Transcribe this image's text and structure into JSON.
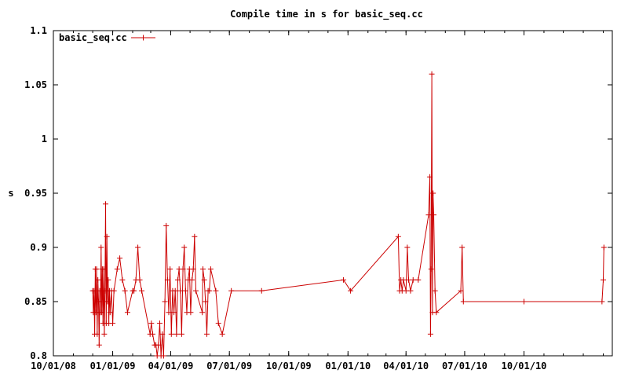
{
  "chart_data": {
    "type": "line",
    "title": "Compile time in s for basic_seq.cc",
    "xlabel": "",
    "ylabel": "s",
    "x_type": "date",
    "xlim": [
      "2008-10-01",
      "2011-02-15"
    ],
    "ylim": [
      0.8,
      1.1
    ],
    "x_ticks": [
      {
        "date": "2008-10-01",
        "label": "10/01/08"
      },
      {
        "date": "2009-01-01",
        "label": "01/01/09"
      },
      {
        "date": "2009-04-01",
        "label": "04/01/09"
      },
      {
        "date": "2009-07-01",
        "label": "07/01/09"
      },
      {
        "date": "2009-10-01",
        "label": "10/01/09"
      },
      {
        "date": "2010-01-01",
        "label": "01/01/10"
      },
      {
        "date": "2010-04-01",
        "label": "04/01/10"
      },
      {
        "date": "2010-07-01",
        "label": "07/01/10"
      },
      {
        "date": "2010-10-01",
        "label": "10/01/10"
      }
    ],
    "y_ticks": [
      {
        "value": 0.8,
        "label": "0.8"
      },
      {
        "value": 0.85,
        "label": "0.85"
      },
      {
        "value": 0.9,
        "label": "0.9"
      },
      {
        "value": 0.95,
        "label": "0.95"
      },
      {
        "value": 1.0,
        "label": "1"
      },
      {
        "value": 1.05,
        "label": "1.05"
      },
      {
        "value": 1.1,
        "label": "1.1"
      }
    ],
    "legend_position": "top-left",
    "grid": false,
    "series": [
      {
        "name": "basic_seq.cc",
        "color": "#cc0000",
        "x": [
          "2008-12-01",
          "2008-12-02",
          "2008-12-03",
          "2008-12-04",
          "2008-12-05",
          "2008-12-06",
          "2008-12-07",
          "2008-12-08",
          "2008-12-09",
          "2008-12-10",
          "2008-12-11",
          "2008-12-12",
          "2008-12-13",
          "2008-12-14",
          "2008-12-15",
          "2008-12-16",
          "2008-12-17",
          "2008-12-18",
          "2008-12-19",
          "2008-12-20",
          "2008-12-21",
          "2008-12-22",
          "2008-12-23",
          "2008-12-24",
          "2008-12-25",
          "2008-12-26",
          "2008-12-27",
          "2008-12-28",
          "2008-12-30",
          "2009-01-01",
          "2009-01-03",
          "2009-01-08",
          "2009-01-12",
          "2009-01-16",
          "2009-01-20",
          "2009-01-24",
          "2009-02-01",
          "2009-02-03",
          "2009-02-06",
          "2009-02-09",
          "2009-02-12",
          "2009-02-15",
          "2009-02-28",
          "2009-03-02",
          "2009-03-04",
          "2009-03-07",
          "2009-03-09",
          "2009-03-11",
          "2009-03-13",
          "2009-03-15",
          "2009-03-17",
          "2009-03-19",
          "2009-03-21",
          "2009-03-23",
          "2009-03-25",
          "2009-03-27",
          "2009-03-29",
          "2009-03-31",
          "2009-04-02",
          "2009-04-04",
          "2009-04-06",
          "2009-04-08",
          "2009-04-10",
          "2009-04-12",
          "2009-04-14",
          "2009-04-16",
          "2009-04-18",
          "2009-04-20",
          "2009-04-22",
          "2009-04-24",
          "2009-04-26",
          "2009-04-28",
          "2009-04-30",
          "2009-05-02",
          "2009-05-04",
          "2009-05-06",
          "2009-05-08",
          "2009-05-10",
          "2009-05-20",
          "2009-05-21",
          "2009-05-23",
          "2009-05-25",
          "2009-05-27",
          "2009-05-29",
          "2009-05-31",
          "2009-06-02",
          "2009-06-10",
          "2009-06-14",
          "2009-06-20",
          "2009-07-04",
          "2009-08-20",
          "2009-12-25",
          "2010-01-05",
          "2010-03-20",
          "2010-03-22",
          "2010-03-24",
          "2010-03-26",
          "2010-03-28",
          "2010-04-01",
          "2010-04-03",
          "2010-04-05",
          "2010-04-08",
          "2010-04-12",
          "2010-04-20",
          "2010-05-06",
          "2010-05-08",
          "2010-05-09",
          "2010-05-10",
          "2010-05-11",
          "2010-05-12",
          "2010-05-13",
          "2010-05-14",
          "2010-05-16",
          "2010-05-18",
          "2010-06-25",
          "2010-06-27",
          "2010-06-29",
          "2010-10-01",
          "2011-01-30",
          "2011-02-01",
          "2011-02-02"
        ],
        "y": [
          0.86,
          0.84,
          0.86,
          0.82,
          0.88,
          0.84,
          0.88,
          0.82,
          0.87,
          0.85,
          0.81,
          0.86,
          0.84,
          0.9,
          0.84,
          0.88,
          0.83,
          0.88,
          0.82,
          0.86,
          0.94,
          0.83,
          0.91,
          0.85,
          0.87,
          0.83,
          0.86,
          0.84,
          0.86,
          0.83,
          0.86,
          0.88,
          0.89,
          0.87,
          0.86,
          0.84,
          0.86,
          0.86,
          0.87,
          0.9,
          0.87,
          0.86,
          0.82,
          0.83,
          0.82,
          0.81,
          0.81,
          0.8,
          0.81,
          0.83,
          0.8,
          0.82,
          0.8,
          0.85,
          0.92,
          0.87,
          0.84,
          0.88,
          0.82,
          0.86,
          0.84,
          0.86,
          0.82,
          0.87,
          0.88,
          0.86,
          0.82,
          0.88,
          0.9,
          0.86,
          0.84,
          0.87,
          0.88,
          0.84,
          0.87,
          0.88,
          0.91,
          0.86,
          0.84,
          0.88,
          0.87,
          0.85,
          0.82,
          0.86,
          0.86,
          0.88,
          0.86,
          0.83,
          0.82,
          0.86,
          0.86,
          0.87,
          0.86,
          0.91,
          0.86,
          0.87,
          0.86,
          0.87,
          0.86,
          0.9,
          0.87,
          0.86,
          0.87,
          0.87,
          0.93,
          0.965,
          0.82,
          0.88,
          1.06,
          0.84,
          0.95,
          0.93,
          0.86,
          0.84,
          0.86,
          0.9,
          0.85,
          0.85,
          0.85,
          0.87,
          0.9
        ]
      }
    ]
  }
}
